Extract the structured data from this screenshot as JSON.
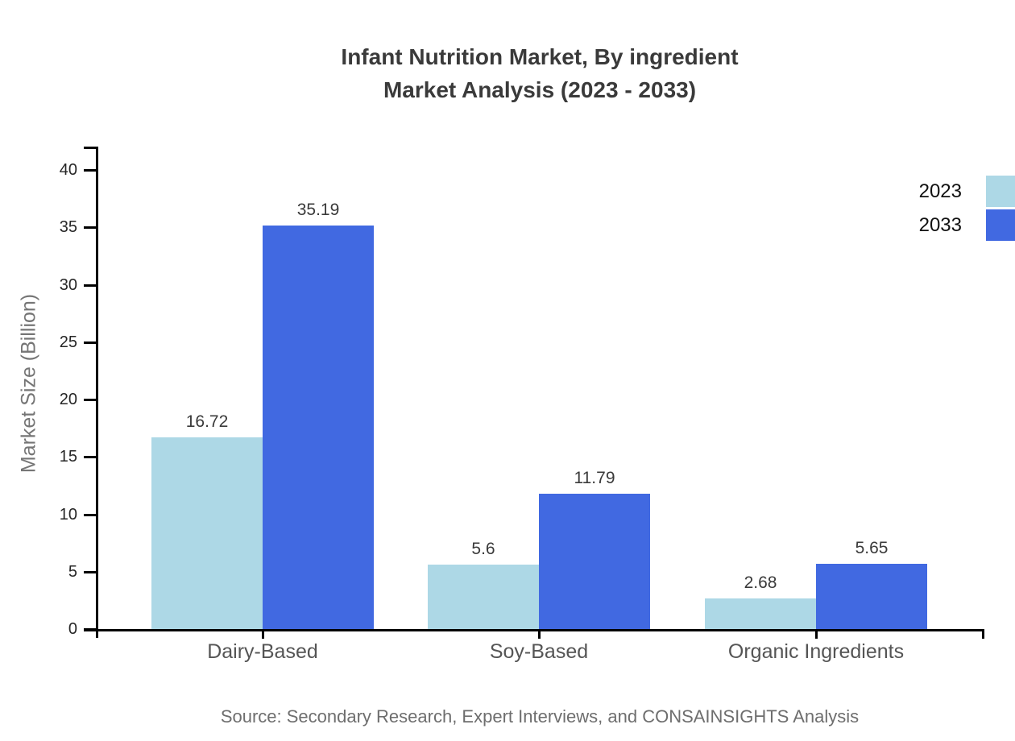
{
  "page": {
    "background": "#ffffff"
  },
  "chart_data": {
    "type": "bar",
    "title": "Infant Nutrition Market, By ingredient",
    "subtitle": "Market Analysis (2023 - 2033)",
    "ylabel": "Market Size (Billion)",
    "xlabel": "",
    "categories": [
      "Dairy-Based",
      "Soy-Based",
      "Organic Ingredients"
    ],
    "series": [
      {
        "name": "2023",
        "color": "#ADD8E6",
        "values": [
          16.72,
          5.6,
          2.68
        ]
      },
      {
        "name": "2033",
        "color": "#4169E1",
        "values": [
          35.19,
          11.79,
          5.65
        ]
      }
    ],
    "y_ticks": [
      0,
      5,
      10,
      15,
      20,
      25,
      30,
      35,
      40
    ],
    "ylim": [
      0,
      42
    ],
    "grid": false,
    "legend_position": "top-right",
    "value_labels": true,
    "axis_color": "#000000"
  },
  "source_note": "Source: Secondary Research, Expert Interviews, and CONSAINSIGHTS Analysis"
}
